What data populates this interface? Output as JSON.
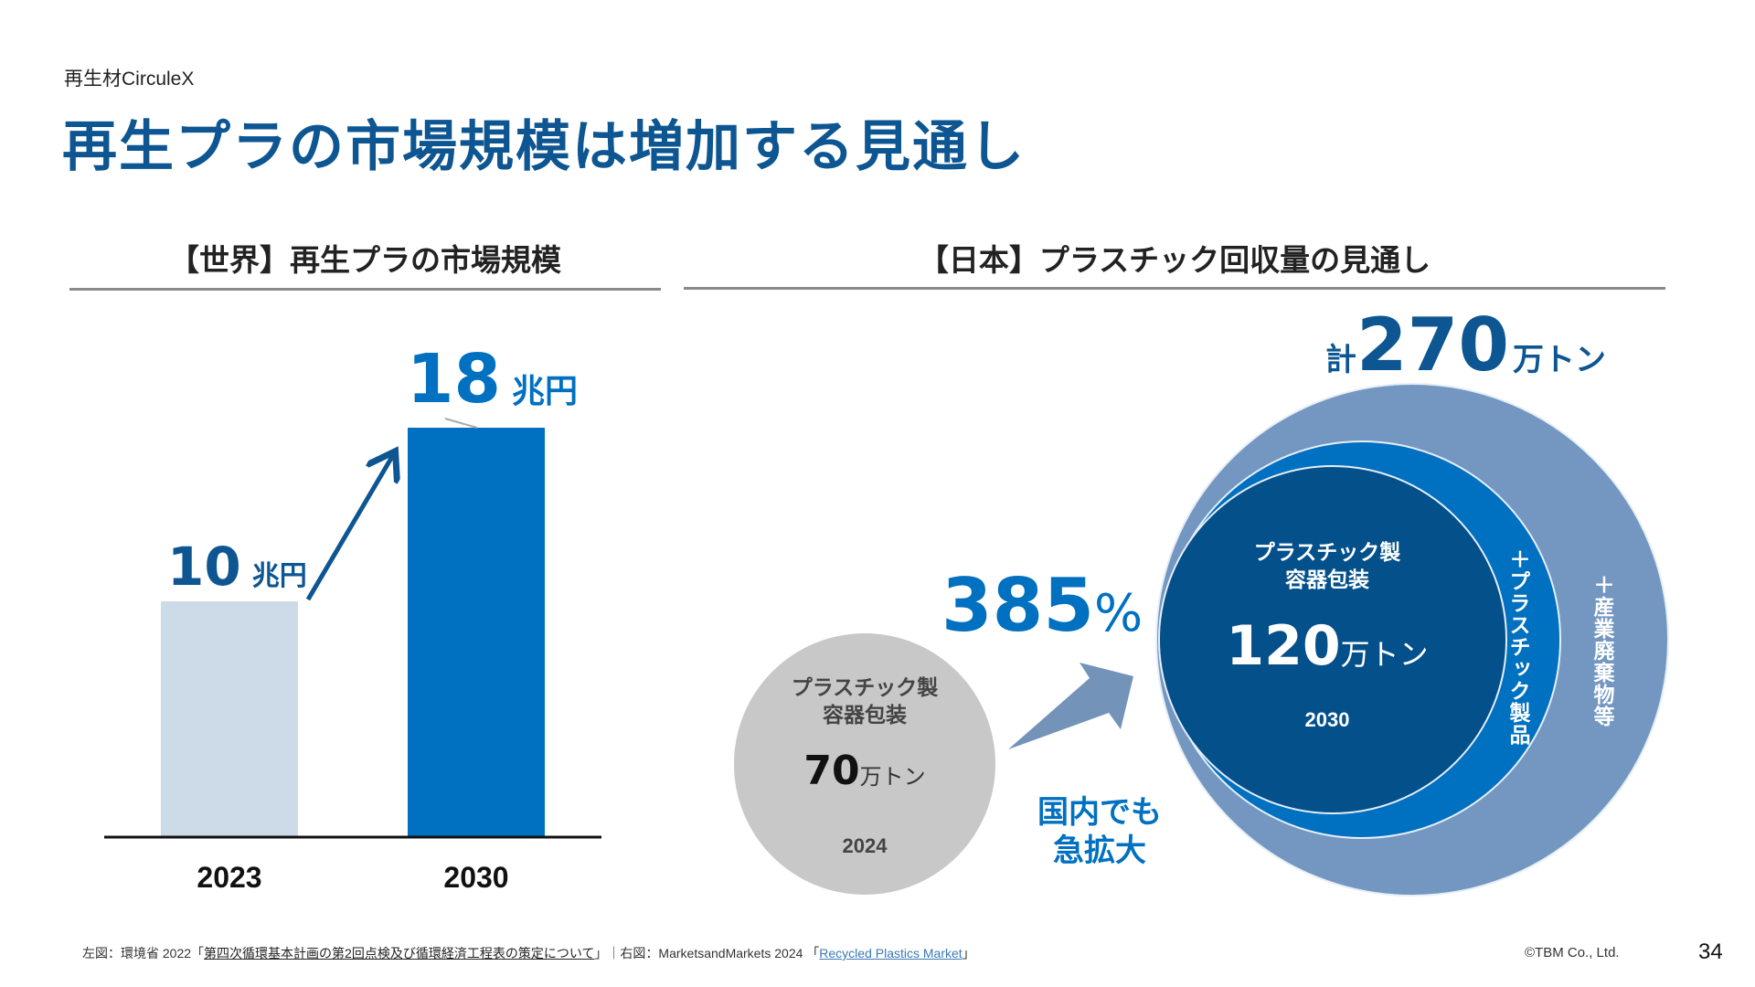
{
  "header": {
    "eyebrow": "再生材CirculeX",
    "title": "再生プラの市場規模は増加する見通し"
  },
  "colors": {
    "title_blue": "#0d5692",
    "bar_2023": "#cddbe8",
    "bar_2030": "#0070c0",
    "arrow_dark": "#0d5692",
    "grey_circle": "#c8c8c8",
    "outer_circle": "#7397c0",
    "middle_circle": "#0070c0",
    "inner_circle": "#03508b",
    "growth_arrow": "#7393b8",
    "accent_blue": "#0070c0"
  },
  "chart_data": [
    {
      "type": "bar",
      "title": "【世界】再生プラの市場規模",
      "categories": [
        "2023",
        "2030"
      ],
      "values": [
        10,
        18
      ],
      "unit": "兆円",
      "value_labels": [
        "10",
        "18"
      ],
      "xlabel": "",
      "ylabel": "",
      "ylim": [
        0,
        20
      ],
      "grid": false,
      "annotation": "growth arrow from 2023 to 2030"
    },
    {
      "type": "bubble",
      "title": "【日本】プラスチック回収量の見通し",
      "unit": "万トン",
      "items": [
        {
          "year": "2024",
          "category": "プラスチック製容器包装",
          "value": 70,
          "value_label": "70",
          "unit": "万トン"
        },
        {
          "year": "2030",
          "category": "プラスチック製容器包装",
          "value": 120,
          "value_label": "120",
          "unit": "万トン"
        }
      ],
      "layers_2030": [
        {
          "label": "プラスチック製容器包装",
          "value": 120
        },
        {
          "label": "＋プラスチック製品"
        },
        {
          "label": "＋産業廃棄物等"
        }
      ],
      "total": {
        "prefix": "計",
        "value": 270,
        "value_label": "270",
        "unit": "万トン"
      },
      "growth": {
        "value_label": "385",
        "unit": "%",
        "caption_line1": "国内でも",
        "caption_line2": "急拡大"
      }
    }
  ],
  "labels": {
    "bar_unit": "兆円",
    "circle_2024_line1": "プラスチック製",
    "circle_2024_line2": "容器包装",
    "circle_2030_line1": "プラスチック製",
    "circle_2030_line2": "容器包装",
    "ton_unit": "万トン",
    "plus_products": "＋プラスチック製品",
    "plus_industrial": "＋産業廃棄物等",
    "total_prefix": "計"
  },
  "footer": {
    "left_prefix": "左図：環境省 2022「",
    "left_link": "第四次循環基本計画の第2回点検及び循環経済工程表の策定について",
    "left_suffix": "」｜右図：MarketsandMarkets 2024 「",
    "right_link": "Recycled Plastics Market",
    "right_suffix": "」",
    "copyright": "©TBM Co., Ltd.",
    "page_number": "34"
  }
}
